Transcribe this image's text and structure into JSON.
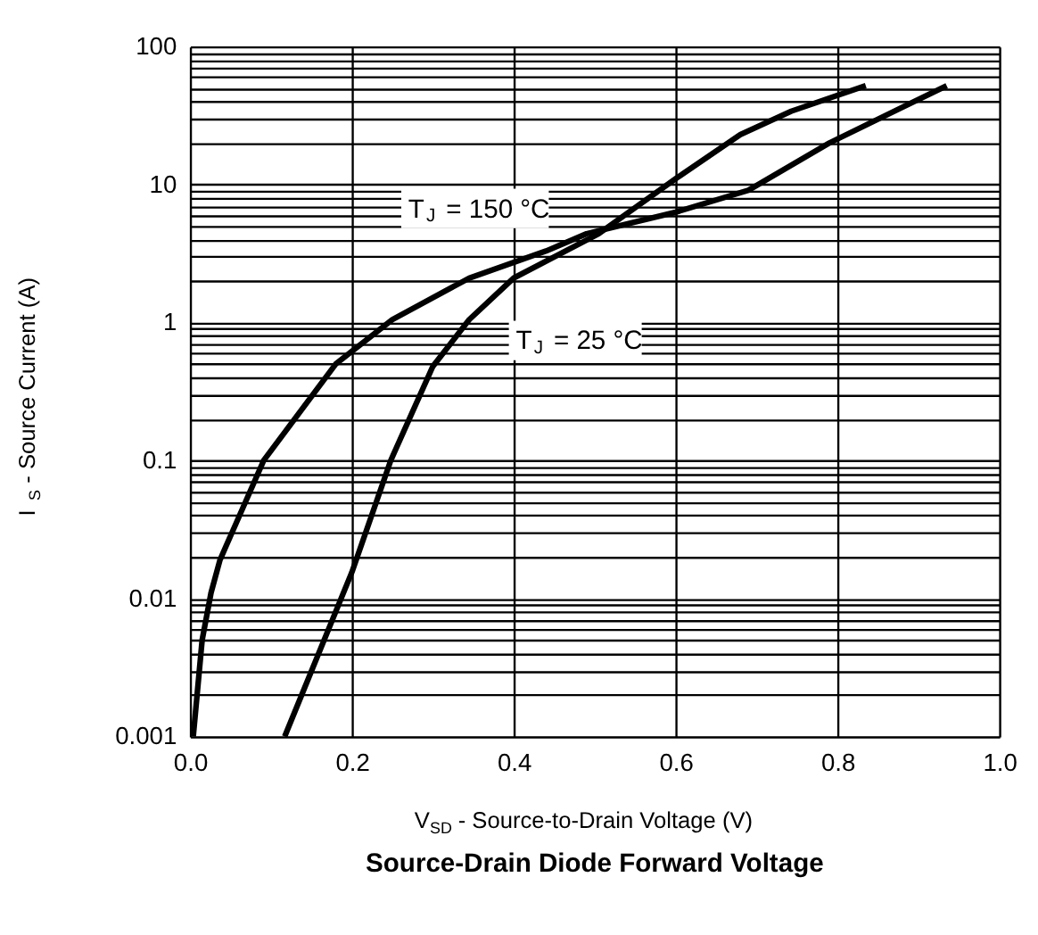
{
  "chart_data": {
    "type": "line",
    "title": "Source-Drain Diode Forward Voltage",
    "xlabel": "V$_{SD}$ - Source-to-Drain Voltage (V)",
    "ylabel": "I$_{S}$ - Source Current (A)",
    "series": [
      {
        "color": "#000000",
        "x": [
          0.004,
          0.015,
          0.026,
          0.037,
          0.091,
          0.18,
          0.25,
          0.345,
          0.44,
          0.49,
          0.6,
          0.69,
          0.79,
          0.935
        ],
        "values": [
          0.001,
          0.005,
          0.011,
          0.019,
          0.1,
          0.5,
          1.05,
          2.1,
          3.3,
          4.4,
          6.3,
          9.1,
          20,
          52
        ]
      },
      {
        "color": "#000000",
        "x": [
          0.117,
          0.2,
          0.248,
          0.3,
          0.345,
          0.4,
          0.505,
          0.6,
          0.68,
          0.743,
          0.835
        ],
        "values": [
          0.001,
          0.0155,
          0.1,
          0.48,
          1.05,
          2.1,
          4.4,
          11,
          23,
          34,
          52
        ]
      }
    ],
    "annotations": [
      "T$_{J}$ = 150 °C",
      "T$_{J}$ = 25 °C"
    ],
    "xlim": [
      0,
      1
    ],
    "ylim": [
      0.001,
      100
    ],
    "log": "y",
    "xticks": [
      {
        "value": 0,
        "label": "0.0"
      },
      {
        "value": 0.2,
        "label": "0.2"
      },
      {
        "value": 0.4,
        "label": "0.4"
      },
      {
        "value": 0.6,
        "label": "0.6"
      },
      {
        "value": 0.8,
        "label": "0.8"
      },
      {
        "value": 1,
        "label": "1.0"
      }
    ],
    "yticks": [
      0.001,
      {
        "value": 0.002,
        "label": null
      },
      {
        "value": 0.003,
        "label": null
      },
      {
        "value": 0.004,
        "label": null
      },
      {
        "value": 0.005,
        "label": null
      },
      {
        "value": 0.006,
        "label": null
      },
      {
        "value": 0.007,
        "label": null
      },
      {
        "value": 0.008,
        "label": null
      },
      {
        "value": 0.009,
        "label": null
      },
      0.01,
      {
        "value": 0.02,
        "label": null
      },
      {
        "value": 0.03,
        "label": null
      },
      {
        "value": 0.04,
        "label": null
      },
      {
        "value": 0.05,
        "label": null
      },
      {
        "value": 0.06,
        "label": null
      },
      {
        "value": 0.07,
        "label": null
      },
      {
        "value": 0.08,
        "label": null
      },
      {
        "value": 0.09,
        "label": null
      },
      0.1,
      {
        "value": 0.2,
        "label": null
      },
      {
        "value": 0.3,
        "label": null
      },
      {
        "value": 0.4,
        "label": null
      },
      {
        "value": 0.5,
        "label": null
      },
      {
        "value": 0.6,
        "label": null
      },
      {
        "value": 0.7,
        "label": null
      },
      {
        "value": 0.8,
        "label": null
      },
      {
        "value": 0.9,
        "label": null
      },
      1,
      {
        "value": 2,
        "label": null
      },
      {
        "value": 3,
        "label": null
      },
      {
        "value": 4,
        "label": null
      },
      {
        "value": 5,
        "label": null
      },
      {
        "value": 6,
        "label": null
      },
      {
        "value": 7,
        "label": null
      },
      {
        "value": 8,
        "label": null
      },
      {
        "value": 9,
        "label": null
      },
      10,
      {
        "value": 20,
        "label": null
      },
      {
        "value": 30,
        "label": null
      },
      {
        "value": 40,
        "label": null
      },
      {
        "value": 50,
        "label": null
      },
      {
        "value": 60,
        "label": null
      },
      {
        "value": 70,
        "label": null
      },
      {
        "value": 80,
        "label": null
      },
      {
        "value": 90,
        "label": null
      },
      100
    ],
    "grid": true,
    "legend": false,
    "marker": "none",
    "line_style": "solid"
  }
}
